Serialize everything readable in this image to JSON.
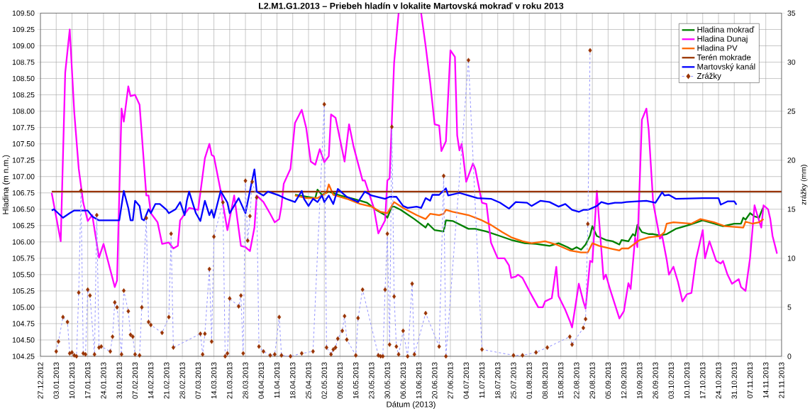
{
  "chart_data": {
    "type": "line",
    "title": "L2.M1.G1.2013 – Priebeh hladín v lokalite Martovská mokraď v roku 2013",
    "xlabel": "Dátum (2013)",
    "ylabel": "Hladina (m n.m.)",
    "y2label": "zrážky (mm)",
    "xlim": [
      "2012-12-27",
      "2013-11-21"
    ],
    "xticks": [
      {
        "value": "2012-12-27",
        "label": "27.12.2012"
      },
      {
        "value": "2013-01-03",
        "label": "03.01.2013"
      },
      {
        "value": "2013-01-10",
        "label": "10.01.2013"
      },
      {
        "value": "2013-01-17",
        "label": "17.01.2013"
      },
      {
        "value": "2013-01-24",
        "label": "24.01.2013"
      },
      {
        "value": "2013-01-31",
        "label": "31.01.2013"
      },
      {
        "value": "2013-02-07",
        "label": "07.02.2013"
      },
      {
        "value": "2013-02-14",
        "label": "14.02.2013"
      },
      {
        "value": "2013-02-21",
        "label": "21.02.2013"
      },
      {
        "value": "2013-02-28",
        "label": "28.02.2013"
      },
      {
        "value": "2013-03-07",
        "label": "07.03.2013"
      },
      {
        "value": "2013-03-14",
        "label": "14.03.2013"
      },
      {
        "value": "2013-03-21",
        "label": "21.03.2013"
      },
      {
        "value": "2013-03-28",
        "label": "28.03.2013"
      },
      {
        "value": "2013-04-04",
        "label": "04.04.2013"
      },
      {
        "value": "2013-04-11",
        "label": "11.04.2013"
      },
      {
        "value": "2013-04-18",
        "label": "18.04.2013"
      },
      {
        "value": "2013-04-25",
        "label": "25.04.2013"
      },
      {
        "value": "2013-05-02",
        "label": "02.05.2013"
      },
      {
        "value": "2013-05-09",
        "label": "09.05.2013"
      },
      {
        "value": "2013-05-16",
        "label": "16.05.2013"
      },
      {
        "value": "2013-05-23",
        "label": "23.05.2013"
      },
      {
        "value": "2013-05-30",
        "label": "30.05.2013"
      },
      {
        "value": "2013-06-06",
        "label": "06.06.2013"
      },
      {
        "value": "2013-06-13",
        "label": "13.06.2013"
      },
      {
        "value": "2013-06-20",
        "label": "20.06.2013"
      },
      {
        "value": "2013-06-27",
        "label": "27.06.2013"
      },
      {
        "value": "2013-07-04",
        "label": "04.07.2013"
      },
      {
        "value": "2013-07-11",
        "label": "11.07.2013"
      },
      {
        "value": "2013-07-18",
        "label": "18.07.2013"
      },
      {
        "value": "2013-07-25",
        "label": "25.07.2013"
      },
      {
        "value": "2013-08-01",
        "label": "01.08.2013"
      },
      {
        "value": "2013-08-08",
        "label": "08.08.2013"
      },
      {
        "value": "2013-08-15",
        "label": "15.08.2013"
      },
      {
        "value": "2013-08-22",
        "label": "22.08.2013"
      },
      {
        "value": "2013-08-29",
        "label": "29.08.2013"
      },
      {
        "value": "2013-09-05",
        "label": "05.09.2013"
      },
      {
        "value": "2013-09-12",
        "label": "12.09.2013"
      },
      {
        "value": "2013-09-19",
        "label": "19.09.2013"
      },
      {
        "value": "2013-09-26",
        "label": "26.09.2013"
      },
      {
        "value": "2013-10-03",
        "label": "03.10.2013"
      },
      {
        "value": "2013-10-10",
        "label": "10.10.2013"
      },
      {
        "value": "2013-10-17",
        "label": "17.10.2013"
      },
      {
        "value": "2013-10-24",
        "label": "24.10.2013"
      },
      {
        "value": "2013-10-31",
        "label": "31.10.2013"
      },
      {
        "value": "2013-11-07",
        "label": "07.11.2013"
      },
      {
        "value": "2013-11-14",
        "label": "14.11.2013"
      },
      {
        "value": "2013-11-21",
        "label": "21.11.2013"
      }
    ],
    "ylim": [
      104.25,
      109.5
    ],
    "yticks": [
      {
        "value": 104.25,
        "label": "104.25"
      },
      {
        "value": 104.5,
        "label": "104.50"
      },
      {
        "value": 104.75,
        "label": "104.75"
      },
      {
        "value": 105,
        "label": "105.00"
      },
      {
        "value": 105.25,
        "label": "105.25"
      },
      {
        "value": 105.5,
        "label": "105.50"
      },
      {
        "value": 105.75,
        "label": "105.75"
      },
      {
        "value": 106,
        "label": "106.00"
      },
      {
        "value": 106.25,
        "label": "106.25"
      },
      {
        "value": 106.5,
        "label": "106.50"
      },
      {
        "value": 106.75,
        "label": "106.75"
      },
      {
        "value": 107,
        "label": "107.00"
      },
      {
        "value": 107.25,
        "label": "107.25"
      },
      {
        "value": 107.5,
        "label": "107.50"
      },
      {
        "value": 107.75,
        "label": "107.75"
      },
      {
        "value": 108,
        "label": "108.00"
      },
      {
        "value": 108.25,
        "label": "108.25"
      },
      {
        "value": 108.5,
        "label": "108.50"
      },
      {
        "value": 108.75,
        "label": "108.75"
      },
      {
        "value": 109,
        "label": "109.00"
      },
      {
        "value": 109.25,
        "label": "109.25"
      },
      {
        "value": 109.5,
        "label": "109.50"
      }
    ],
    "y2lim": [
      0,
      35
    ],
    "y2ticks": [
      0,
      5,
      10,
      15,
      20,
      25,
      30,
      35
    ],
    "grid": true,
    "legend": "top right",
    "series": [
      {
        "name": "Hladina mokraď",
        "color": "#008000",
        "x": [
          "2013-04-19",
          "2013-04-28",
          "2013-04-29",
          "2013-05-01",
          "2013-05-04",
          "2013-05-09",
          "2013-05-15",
          "2013-05-21",
          "2013-05-25",
          "2013-05-29",
          "2013-05-30",
          "2013-06-01",
          "2013-06-02",
          "2013-06-05",
          "2013-06-11",
          "2013-06-16",
          "2013-06-17",
          "2013-06-20",
          "2013-06-24",
          "2013-06-25",
          "2013-06-28",
          "2013-07-05",
          "2013-07-08",
          "2013-07-13",
          "2013-07-19",
          "2013-07-24",
          "2013-07-30",
          "2013-08-04",
          "2013-08-10",
          "2013-08-14",
          "2013-08-18",
          "2013-08-20",
          "2013-08-22",
          "2013-08-24",
          "2013-08-26",
          "2013-08-28",
          "2013-08-29",
          "2013-08-31",
          "2013-09-04",
          "2013-09-07",
          "2013-09-10",
          "2013-09-11",
          "2013-09-14",
          "2013-09-16",
          "2013-09-17",
          "2013-09-18",
          "2013-09-20",
          "2013-09-23",
          "2013-09-25",
          "2013-09-28",
          "2013-10-01",
          "2013-10-05",
          "2013-10-11",
          "2013-10-17",
          "2013-10-22",
          "2013-10-26",
          "2013-10-31",
          "2013-11-03",
          "2013-11-04",
          "2013-11-05",
          "2013-11-07",
          "2013-11-09",
          "2013-11-11",
          "2013-11-12",
          "2013-11-13"
        ],
        "values": [
          106.72,
          106.67,
          106.8,
          106.72,
          106.77,
          106.71,
          106.66,
          106.6,
          106.49,
          106.41,
          106.37,
          106.54,
          106.54,
          106.49,
          106.35,
          106.22,
          106.28,
          106.18,
          106.16,
          106.33,
          106.32,
          106.2,
          106.2,
          106.16,
          106.09,
          106.03,
          105.98,
          105.97,
          105.94,
          105.98,
          105.92,
          105.88,
          105.92,
          105.88,
          105.96,
          106.1,
          106.24,
          106.09,
          106.03,
          106.01,
          105.96,
          106.03,
          106.01,
          106.12,
          106.09,
          106.26,
          106.15,
          106.12,
          106.12,
          106.1,
          106.12,
          106.2,
          106.26,
          106.33,
          106.28,
          106.24,
          106.28,
          106.28,
          106.37,
          106.34,
          106.44,
          106.39,
          106.37,
          106.46,
          106.54
        ]
      },
      {
        "name": "Hladina Dunaj",
        "color": "#ff00ff",
        "x": [
          "2013-01-01",
          "2013-01-05",
          "2013-01-07",
          "2013-01-09",
          "2013-01-11",
          "2013-01-13",
          "2013-01-15",
          "2013-01-17",
          "2013-01-19",
          "2013-01-22",
          "2013-01-24",
          "2013-01-29",
          "2013-01-30",
          "2013-02-01",
          "2013-02-02",
          "2013-02-04",
          "2013-02-05",
          "2013-02-07",
          "2013-02-09",
          "2013-02-12",
          "2013-02-13",
          "2013-02-14",
          "2013-02-17",
          "2013-02-19",
          "2013-02-22",
          "2013-02-24",
          "2013-02-26",
          "2013-02-27",
          "2013-03-03",
          "2013-03-07",
          "2013-03-10",
          "2013-03-12",
          "2013-03-13",
          "2013-03-14",
          "2013-03-17",
          "2013-03-20",
          "2013-03-23",
          "2013-03-26",
          "2013-03-28",
          "2013-03-30",
          "2013-04-01",
          "2013-04-02",
          "2013-04-05",
          "2013-04-08",
          "2013-04-10",
          "2013-04-12",
          "2013-04-13",
          "2013-04-14",
          "2013-04-17",
          "2013-04-19",
          "2013-04-22",
          "2013-04-24",
          "2013-04-26",
          "2013-04-28",
          "2013-04-30",
          "2013-05-02",
          "2013-05-04",
          "2013-05-05",
          "2013-05-07",
          "2013-05-11",
          "2013-05-13",
          "2013-05-15",
          "2013-05-19",
          "2013-05-20",
          "2013-05-24",
          "2013-05-26",
          "2013-05-29",
          "2013-05-30",
          "2013-05-31",
          "2013-06-02",
          "2013-06-04",
          "2013-06-09",
          "2013-06-14",
          "2013-06-16",
          "2013-06-18",
          "2013-06-20",
          "2013-06-22",
          "2013-06-23",
          "2013-06-25",
          "2013-06-27",
          "2013-06-29",
          "2013-06-30",
          "2013-07-01",
          "2013-07-02",
          "2013-07-04",
          "2013-07-07",
          "2013-07-08",
          "2013-07-11",
          "2013-07-13",
          "2013-07-15",
          "2013-07-18",
          "2013-07-21",
          "2013-07-23",
          "2013-07-24",
          "2013-07-26",
          "2013-07-27",
          "2013-07-29",
          "2013-08-01",
          "2013-08-05",
          "2013-08-07",
          "2013-08-08",
          "2013-08-11",
          "2013-08-13",
          "2013-08-14",
          "2013-08-17",
          "2013-08-19",
          "2013-08-20",
          "2013-08-23",
          "2013-08-25",
          "2013-08-26",
          "2013-08-28",
          "2013-08-29",
          "2013-08-31",
          "2013-09-03",
          "2013-09-04",
          "2013-09-06",
          "2013-09-10",
          "2013-09-12",
          "2013-09-14",
          "2013-09-15",
          "2013-09-17",
          "2013-09-18",
          "2013-09-20",
          "2013-09-22",
          "2013-09-23",
          "2013-09-25",
          "2013-09-28",
          "2013-09-29",
          "2013-10-01",
          "2013-10-02",
          "2013-10-04",
          "2013-10-06",
          "2013-10-08",
          "2013-10-10",
          "2013-10-12",
          "2013-10-14",
          "2013-10-17",
          "2013-10-18",
          "2013-10-20",
          "2013-10-23",
          "2013-10-25",
          "2013-10-26",
          "2013-10-28",
          "2013-10-30",
          "2013-11-02",
          "2013-11-03",
          "2013-11-05",
          "2013-11-06",
          "2013-11-07",
          "2013-11-09",
          "2013-11-10",
          "2013-11-12",
          "2013-11-13",
          "2013-11-15",
          "2013-11-16",
          "2013-11-17",
          "2013-11-19"
        ],
        "values": [
          106.75,
          106.01,
          108.59,
          109.25,
          107.99,
          107.12,
          106.6,
          106.32,
          106.41,
          105.76,
          105.97,
          105.31,
          105.41,
          108.04,
          107.84,
          108.38,
          108.23,
          108.25,
          108.1,
          106.71,
          106.71,
          106.44,
          106.3,
          105.97,
          105.99,
          105.9,
          105.94,
          106.33,
          106.52,
          106.49,
          107.28,
          107.5,
          107.33,
          107.31,
          106.78,
          106.18,
          106.71,
          105.94,
          105.92,
          105.86,
          106.22,
          106.71,
          106.61,
          106.43,
          106.3,
          106.35,
          106.55,
          106.89,
          107.12,
          107.82,
          108.02,
          107.74,
          107.23,
          107.18,
          107.42,
          107.22,
          107.31,
          107.95,
          107.9,
          107.23,
          107.8,
          107.46,
          106.94,
          106.94,
          106.52,
          106.13,
          106.33,
          106.94,
          106.97,
          108.74,
          109.5,
          null,
          109.5,
          109.0,
          108.44,
          107.8,
          107.78,
          107.39,
          107.54,
          108.93,
          108.83,
          107.63,
          107.4,
          107.5,
          106.92,
          107.2,
          107.12,
          106.6,
          106.58,
          105.99,
          105.75,
          105.75,
          105.64,
          105.45,
          105.47,
          105.5,
          105.45,
          105.25,
          105.0,
          105.0,
          105.09,
          105.14,
          105.62,
          105.17,
          104.96,
          104.79,
          104.69,
          105.36,
          105.09,
          104.98,
          105.71,
          105.69,
          106.78,
          105.43,
          105.5,
          105.26,
          104.83,
          104.94,
          105.37,
          105.28,
          106.07,
          105.92,
          107.87,
          108.04,
          107.72,
          106.6,
          106.05,
          106.09,
          105.73,
          105.5,
          105.62,
          105.39,
          105.09,
          105.2,
          105.22,
          105.73,
          106.18,
          105.75,
          106.01,
          105.71,
          105.67,
          105.71,
          105.5,
          105.36,
          105.43,
          105.31,
          105.25,
          105.5,
          105.75,
          106.56,
          106.44,
          106.22,
          106.56,
          106.5,
          106.35,
          106.09,
          105.82
        ]
      },
      {
        "name": "Hladina PV",
        "color": "#ff6600",
        "x": [
          "2013-04-19",
          "2013-04-24",
          "2013-04-29",
          "2013-05-03",
          "2013-05-04",
          "2013-05-06",
          "2013-05-12",
          "2013-05-18",
          "2013-05-23",
          "2013-05-27",
          "2013-05-30",
          "2013-06-02",
          "2013-06-06",
          "2013-06-12",
          "2013-06-16",
          "2013-06-18",
          "2013-06-22",
          "2013-06-24",
          "2013-06-25",
          "2013-06-28",
          "2013-07-05",
          "2013-07-11",
          "2013-07-15",
          "2013-07-20",
          "2013-07-24",
          "2013-07-29",
          "2013-08-02",
          "2013-08-08",
          "2013-08-13",
          "2013-08-19",
          "2013-08-24",
          "2013-08-27",
          "2013-08-29",
          "2013-09-01",
          "2013-09-06",
          "2013-09-10",
          "2013-09-11",
          "2013-09-14",
          "2013-09-19",
          "2013-09-23",
          "2013-09-28",
          "2013-09-30",
          "2013-10-01",
          "2013-10-04",
          "2013-10-12",
          "2013-10-16",
          "2013-10-22",
          "2013-10-27",
          "2013-11-04",
          "2013-11-05",
          "2013-11-08",
          "2013-11-11",
          "2013-11-13"
        ],
        "values": [
          106.71,
          106.67,
          106.67,
          106.75,
          106.88,
          106.72,
          106.66,
          106.58,
          106.54,
          106.46,
          106.44,
          106.61,
          106.52,
          106.41,
          106.35,
          106.43,
          106.41,
          106.43,
          106.49,
          106.46,
          106.41,
          106.33,
          106.26,
          106.15,
          106.07,
          106.01,
          105.98,
          106.01,
          105.96,
          105.87,
          105.84,
          105.84,
          105.98,
          105.94,
          105.9,
          105.87,
          105.9,
          105.9,
          106.03,
          106.07,
          106.09,
          106.15,
          106.28,
          106.3,
          106.28,
          106.35,
          106.3,
          106.24,
          106.22,
          106.31,
          106.28,
          106.3,
          106.35
        ]
      },
      {
        "name": "Terén mokrade",
        "color": "#993300",
        "x": [
          "2013-01-01",
          "2013-11-21"
        ],
        "values": [
          106.77,
          106.77
        ]
      },
      {
        "name": "Martovský kanál",
        "color": "#0000ff",
        "x": [
          "2013-01-01",
          "2013-01-02",
          "2013-01-06",
          "2013-01-09",
          "2013-01-11",
          "2013-01-17",
          "2013-01-19",
          "2013-01-22",
          "2013-01-31",
          "2013-02-02",
          "2013-02-04",
          "2013-02-05",
          "2013-02-06",
          "2013-02-07",
          "2013-02-09",
          "2013-02-10",
          "2013-02-11",
          "2013-02-13",
          "2013-02-14",
          "2013-02-16",
          "2013-02-18",
          "2013-02-21",
          "2013-02-22",
          "2013-02-25",
          "2013-02-27",
          "2013-03-01",
          "2013-03-02",
          "2013-03-03",
          "2013-03-06",
          "2013-03-08",
          "2013-03-10",
          "2013-03-12",
          "2013-03-13",
          "2013-03-14",
          "2013-03-17",
          "2013-03-20",
          "2013-03-21",
          "2013-03-25",
          "2013-03-28",
          "2013-03-30",
          "2013-04-01",
          "2013-04-02",
          "2013-04-05",
          "2013-04-07",
          "2013-04-12",
          "2013-04-15",
          "2013-04-19",
          "2013-04-22",
          "2013-04-23",
          "2013-04-25",
          "2013-04-27",
          "2013-04-29",
          "2013-05-01",
          "2013-05-02",
          "2013-05-04",
          "2013-05-06",
          "2013-05-08",
          "2013-05-12",
          "2013-05-17",
          "2013-05-20",
          "2013-05-23",
          "2013-05-29",
          "2013-05-31",
          "2013-06-03",
          "2013-06-06",
          "2013-06-08",
          "2013-06-12",
          "2013-06-14",
          "2013-06-16",
          "2013-06-18",
          "2013-06-19",
          "2013-06-22",
          "2013-06-25",
          "2013-06-26",
          "2013-07-01",
          "2013-07-05",
          "2013-07-09",
          "2013-07-15",
          "2013-07-19",
          "2013-07-23",
          "2013-07-26",
          "2013-07-31",
          "2013-08-02",
          "2013-08-06",
          "2013-08-10",
          "2013-08-14",
          "2013-08-17",
          "2013-08-20",
          "2013-08-23",
          "2013-08-25",
          "2013-08-27",
          "2013-08-31",
          "2013-09-02",
          "2013-09-05",
          "2013-09-08",
          "2013-09-11",
          "2013-09-13",
          "2013-09-18",
          "2013-09-22",
          "2013-09-26",
          "2013-09-29",
          "2013-09-30",
          "2013-10-02",
          "2013-10-05",
          "2013-10-17",
          "2013-10-24",
          "2013-10-25",
          "2013-10-28",
          "2013-10-31",
          "2013-11-01"
        ],
        "values": [
          106.48,
          106.5,
          106.37,
          106.44,
          106.48,
          106.48,
          106.39,
          106.33,
          106.33,
          106.78,
          106.52,
          106.33,
          106.33,
          106.63,
          106.55,
          106.35,
          106.33,
          106.5,
          106.44,
          106.58,
          106.58,
          106.49,
          106.44,
          106.5,
          106.61,
          106.41,
          106.63,
          106.77,
          106.44,
          106.32,
          106.63,
          106.41,
          106.49,
          106.37,
          106.78,
          106.6,
          106.44,
          106.67,
          106.44,
          106.78,
          107.11,
          106.77,
          106.71,
          106.77,
          106.71,
          106.66,
          106.61,
          106.78,
          106.66,
          106.55,
          106.66,
          106.61,
          106.71,
          106.61,
          106.71,
          106.58,
          106.81,
          106.69,
          106.61,
          106.77,
          106.71,
          106.66,
          106.69,
          106.69,
          106.55,
          106.52,
          106.54,
          106.52,
          106.67,
          106.63,
          106.72,
          106.72,
          106.82,
          106.71,
          106.75,
          106.71,
          106.67,
          106.66,
          106.6,
          106.51,
          106.61,
          106.6,
          106.55,
          106.63,
          106.61,
          106.54,
          106.58,
          106.49,
          106.46,
          106.49,
          106.49,
          106.55,
          106.61,
          106.58,
          106.6,
          106.6,
          106.61,
          106.62,
          106.63,
          106.6,
          106.76,
          106.71,
          106.72,
          106.66,
          106.67,
          106.67,
          106.57,
          106.62,
          106.62,
          106.57
        ]
      },
      {
        "name": "Zrážky",
        "color": "#9999ff",
        "axis": "y2",
        "line_style": "dashed",
        "marker": "diamond",
        "x": [
          "2013-01-03",
          "2013-01-04",
          "2013-01-06",
          "2013-01-08",
          "2013-01-09",
          "2013-01-10",
          "2013-01-11",
          "2013-01-12",
          "2013-01-13",
          "2013-01-14",
          "2013-01-15",
          "2013-01-16",
          "2013-01-17",
          "2013-01-18",
          "2013-01-20",
          "2013-01-21",
          "2013-01-22",
          "2013-01-23",
          "2013-01-27",
          "2013-01-28",
          "2013-01-29",
          "2013-01-30",
          "2013-02-01",
          "2013-02-02",
          "2013-02-04",
          "2013-02-05",
          "2013-02-06",
          "2013-02-07",
          "2013-02-09",
          "2013-02-10",
          "2013-02-12",
          "2013-02-13",
          "2013-02-14",
          "2013-02-19",
          "2013-02-22",
          "2013-02-23",
          "2013-02-24",
          "2013-03-08",
          "2013-03-09",
          "2013-03-10",
          "2013-03-12",
          "2013-03-13",
          "2013-03-14",
          "2013-03-18",
          "2013-03-19",
          "2013-03-20",
          "2013-03-21",
          "2013-03-25",
          "2013-03-26",
          "2013-03-27",
          "2013-03-28",
          "2013-03-29",
          "2013-03-30",
          "2013-03-31",
          "2013-04-02",
          "2013-04-03",
          "2013-04-05",
          "2013-04-08",
          "2013-04-10",
          "2013-04-12",
          "2013-04-13",
          "2013-04-17",
          "2013-04-22",
          "2013-04-27",
          "2013-05-02",
          "2013-05-03",
          "2013-05-05",
          "2013-05-06",
          "2013-05-07",
          "2013-05-08",
          "2013-05-10",
          "2013-05-11",
          "2013-05-12",
          "2013-05-16",
          "2013-05-17",
          "2013-05-19",
          "2013-05-26",
          "2013-05-27",
          "2013-05-28",
          "2013-05-29",
          "2013-05-30",
          "2013-05-31",
          "2013-06-01",
          "2013-06-02",
          "2013-06-03",
          "2013-06-04",
          "2013-06-06",
          "2013-06-08",
          "2013-06-10",
          "2013-06-11",
          "2013-06-16",
          "2013-06-22",
          "2013-06-24",
          "2013-06-25",
          "2013-07-05",
          "2013-07-11",
          "2013-07-25",
          "2013-07-29",
          "2013-08-04",
          "2013-08-09",
          "2013-08-19",
          "2013-08-20",
          "2013-08-25",
          "2013-08-26",
          "2013-08-27",
          "2013-08-28"
        ],
        "values": [
          0.5,
          1.5,
          4.0,
          3.5,
          0.3,
          0.4,
          0.1,
          0,
          6.5,
          16.9,
          0.3,
          0.2,
          6.8,
          6.2,
          0.2,
          14.4,
          0.9,
          1.0,
          0.5,
          2.0,
          5.5,
          5.0,
          0.2,
          6.7,
          4.6,
          2.2,
          2.0,
          0.2,
          0.1,
          5.0,
          14.1,
          3.5,
          3.2,
          2.4,
          4.0,
          12.5,
          0.9,
          2.3,
          0.2,
          2.3,
          8.9,
          1.5,
          12.2,
          15.7,
          0,
          0.3,
          5.9,
          5.1,
          6.2,
          0.3,
          17.9,
          11.8,
          14.3,
          17.8,
          16.2,
          1.0,
          0.5,
          0.1,
          0.2,
          4.0,
          0.1,
          0,
          0.3,
          0.5,
          25.7,
          0.9,
          0.2,
          0.7,
          0.9,
          1.8,
          2.6,
          4.1,
          1.7,
          0.1,
          3.9,
          6.8,
          0.1,
          0,
          0,
          6.8,
          12.5,
          1.2,
          23.4,
          6.1,
          1.0,
          0.2,
          2.6,
          0,
          7.4,
          0.2,
          4.4,
          1.0,
          18.4,
          0,
          30.2,
          0.7,
          0.1,
          0.1,
          0.4,
          0.9,
          2.0,
          1.2,
          2.9,
          3.8,
          13.5,
          31.2
        ],
        "colors": [
          "#993300",
          "#993300",
          "#993300",
          "#993300",
          "#993300",
          "#993300",
          "#993300",
          "#993300",
          "#993300",
          "#993300",
          "#993300",
          "#993300",
          "#993300",
          "#993300",
          "#993300",
          "#993300",
          "#993300",
          "#993300",
          "#993300",
          "#993300",
          "#993300",
          "#993300",
          "#993300",
          "#993300",
          "#993300",
          "#993300",
          "#993300",
          "#993300",
          "#993300",
          "#993300",
          "#993300",
          "#993300",
          "#993300",
          "#993300",
          "#993300",
          "#993300",
          "#993300",
          "#993300",
          "#993300",
          "#993300",
          "#993300",
          "#993300",
          "#993300",
          "#993300",
          "#993300",
          "#993300",
          "#993300",
          "#993300",
          "#993300",
          "#993300",
          "#993300",
          "#993300",
          "#993300",
          "#993300",
          "#993300",
          "#993300",
          "#993300",
          "#993300",
          "#993300",
          "#993300",
          "#993300",
          "#993300",
          "#993300",
          "#993300",
          "#993300",
          "#993300",
          "#993300",
          "#993300",
          "#993300",
          "#993300",
          "#993300",
          "#993300",
          "#993300",
          "#993300",
          "#993300",
          "#993300",
          "#993300",
          "#993300",
          "#993300",
          "#993300",
          "#993300",
          "#993300",
          "#993300",
          "#993300",
          "#993300",
          "#993300",
          "#993300",
          "#993300",
          "#993300",
          "#993300",
          "#993300",
          "#993300",
          "#993300",
          "#993300",
          "#993300",
          "#993300",
          "#993300",
          "#993300",
          "#993300",
          "#993300",
          "#993300",
          "#993300",
          "#993300",
          "#993300",
          "#993300",
          "#993300"
        ]
      }
    ]
  }
}
